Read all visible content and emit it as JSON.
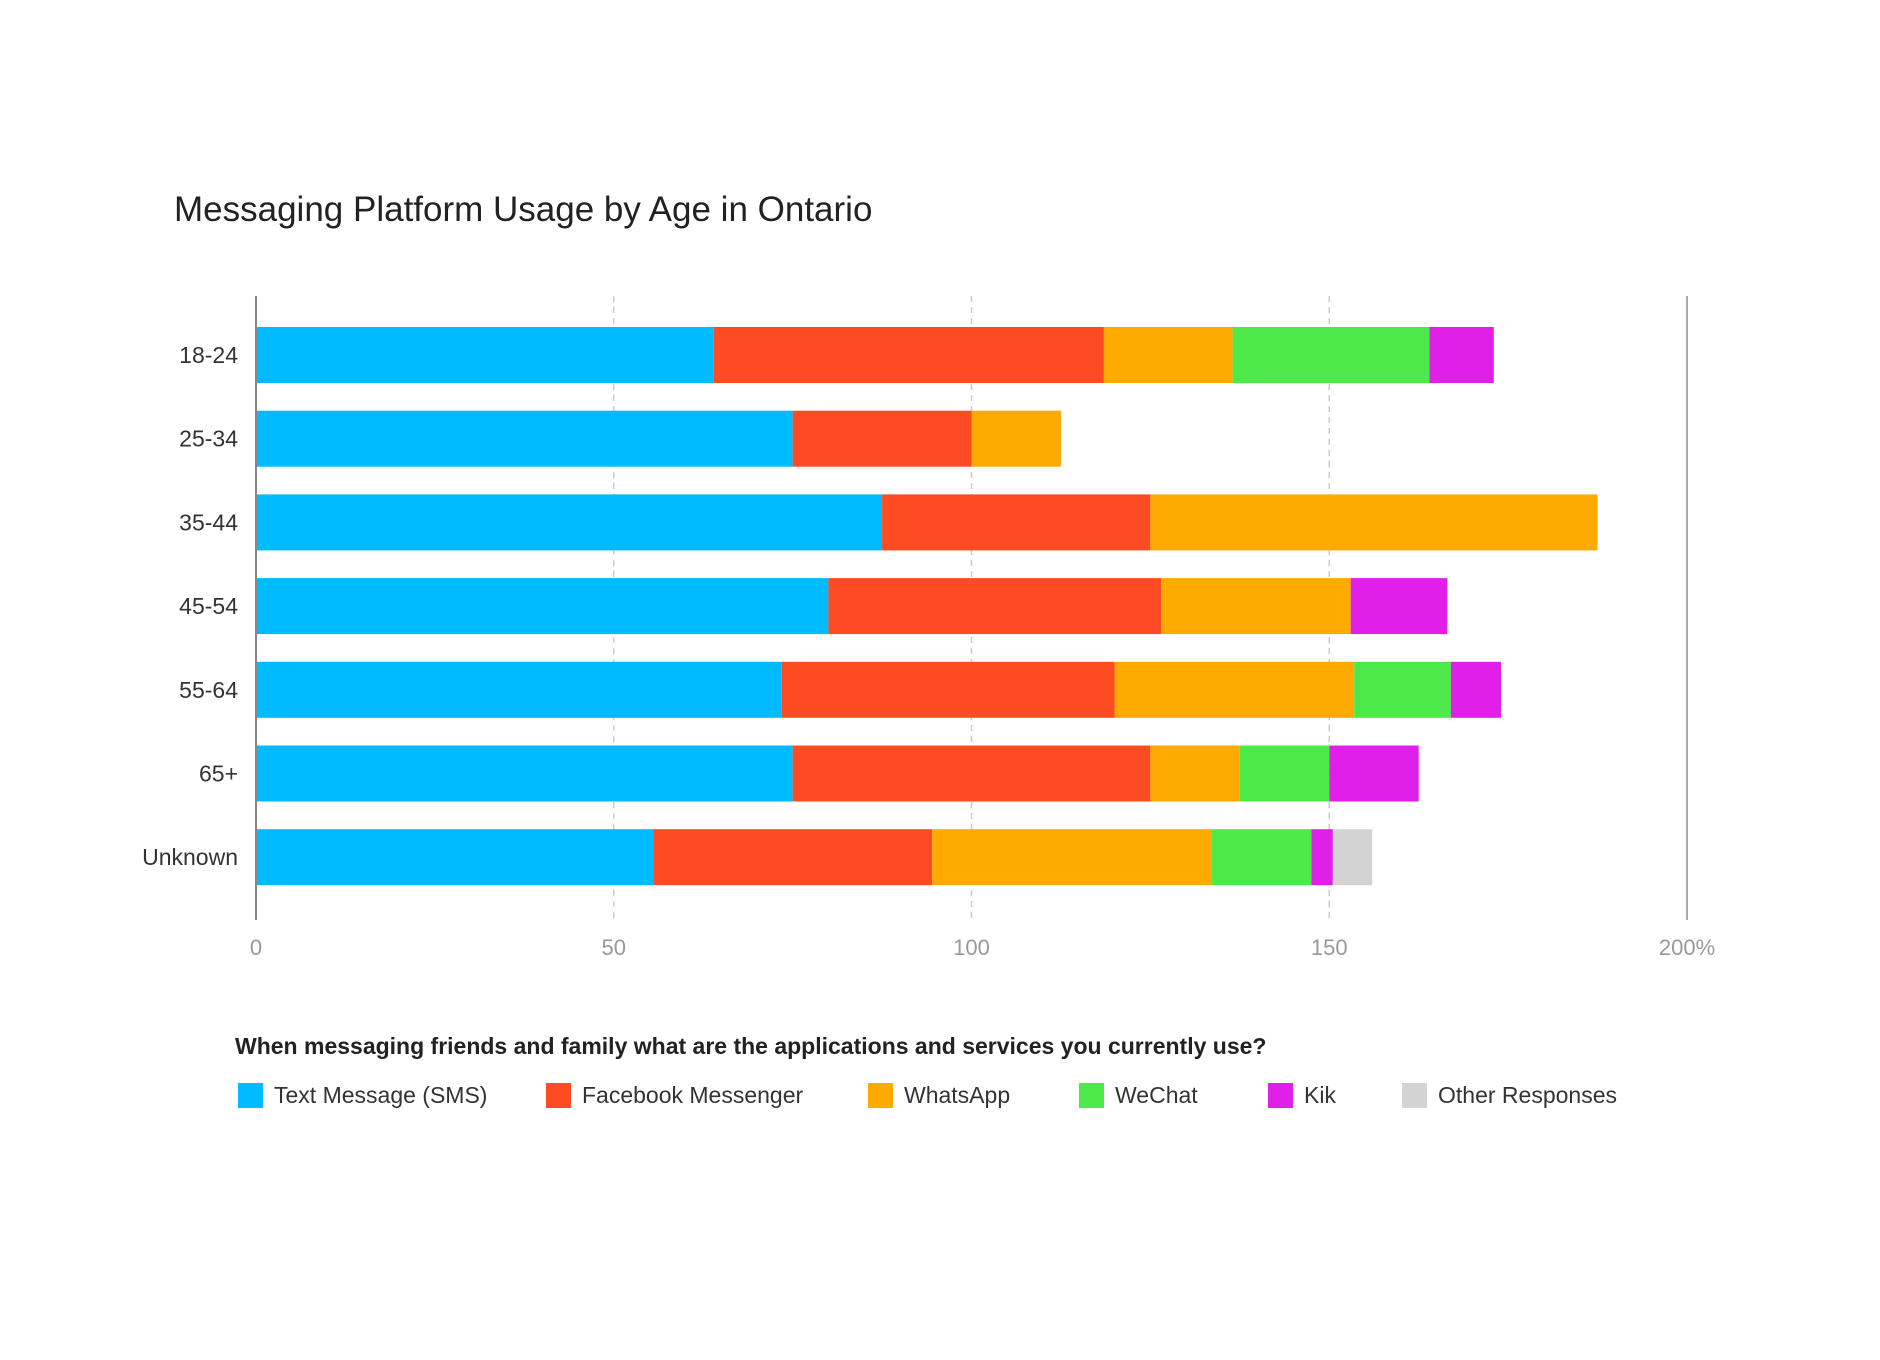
{
  "chart_data": {
    "type": "bar",
    "orientation": "horizontal",
    "stacked": true,
    "title": "Messaging Platform Usage by Age in Ontario",
    "legend_title": "When messaging friends and family what are the applications and services you currently use?",
    "legend_position": "bottom",
    "categories": [
      "18-24",
      "25-34",
      "35-44",
      "45-54",
      "55-64",
      "65+",
      "Unknown"
    ],
    "series": [
      {
        "name": "Text Message (SMS)",
        "color": "#00bbff",
        "values": [
          64,
          75,
          87.5,
          80,
          73.5,
          75,
          55.5
        ]
      },
      {
        "name": "Facebook Messenger",
        "color": "#ff4b22",
        "values": [
          54.5,
          25,
          37.5,
          46.5,
          46.5,
          50,
          39
        ]
      },
      {
        "name": "WhatsApp",
        "color": "#ffaa00",
        "values": [
          18,
          12.5,
          62.5,
          26.5,
          33.5,
          12.5,
          39
        ]
      },
      {
        "name": "WeChat",
        "color": "#4de84a",
        "values": [
          27.5,
          0,
          0,
          0,
          13.5,
          12.5,
          14
        ]
      },
      {
        "name": "Kik",
        "color": "#e020e8",
        "values": [
          9,
          0,
          0,
          13.5,
          7,
          12.5,
          3
        ]
      },
      {
        "name": "Other Responses",
        "color": "#d3d3d3",
        "values": [
          0,
          0,
          0,
          0,
          0,
          0,
          5.5
        ]
      }
    ],
    "xlim": [
      0,
      200
    ],
    "x_ticks": [
      0,
      50,
      100,
      150,
      200
    ],
    "x_tick_labels": [
      "0",
      "50",
      "100",
      "150",
      "200%"
    ],
    "grid": "vertical dashed",
    "xlabel": "",
    "ylabel": ""
  }
}
